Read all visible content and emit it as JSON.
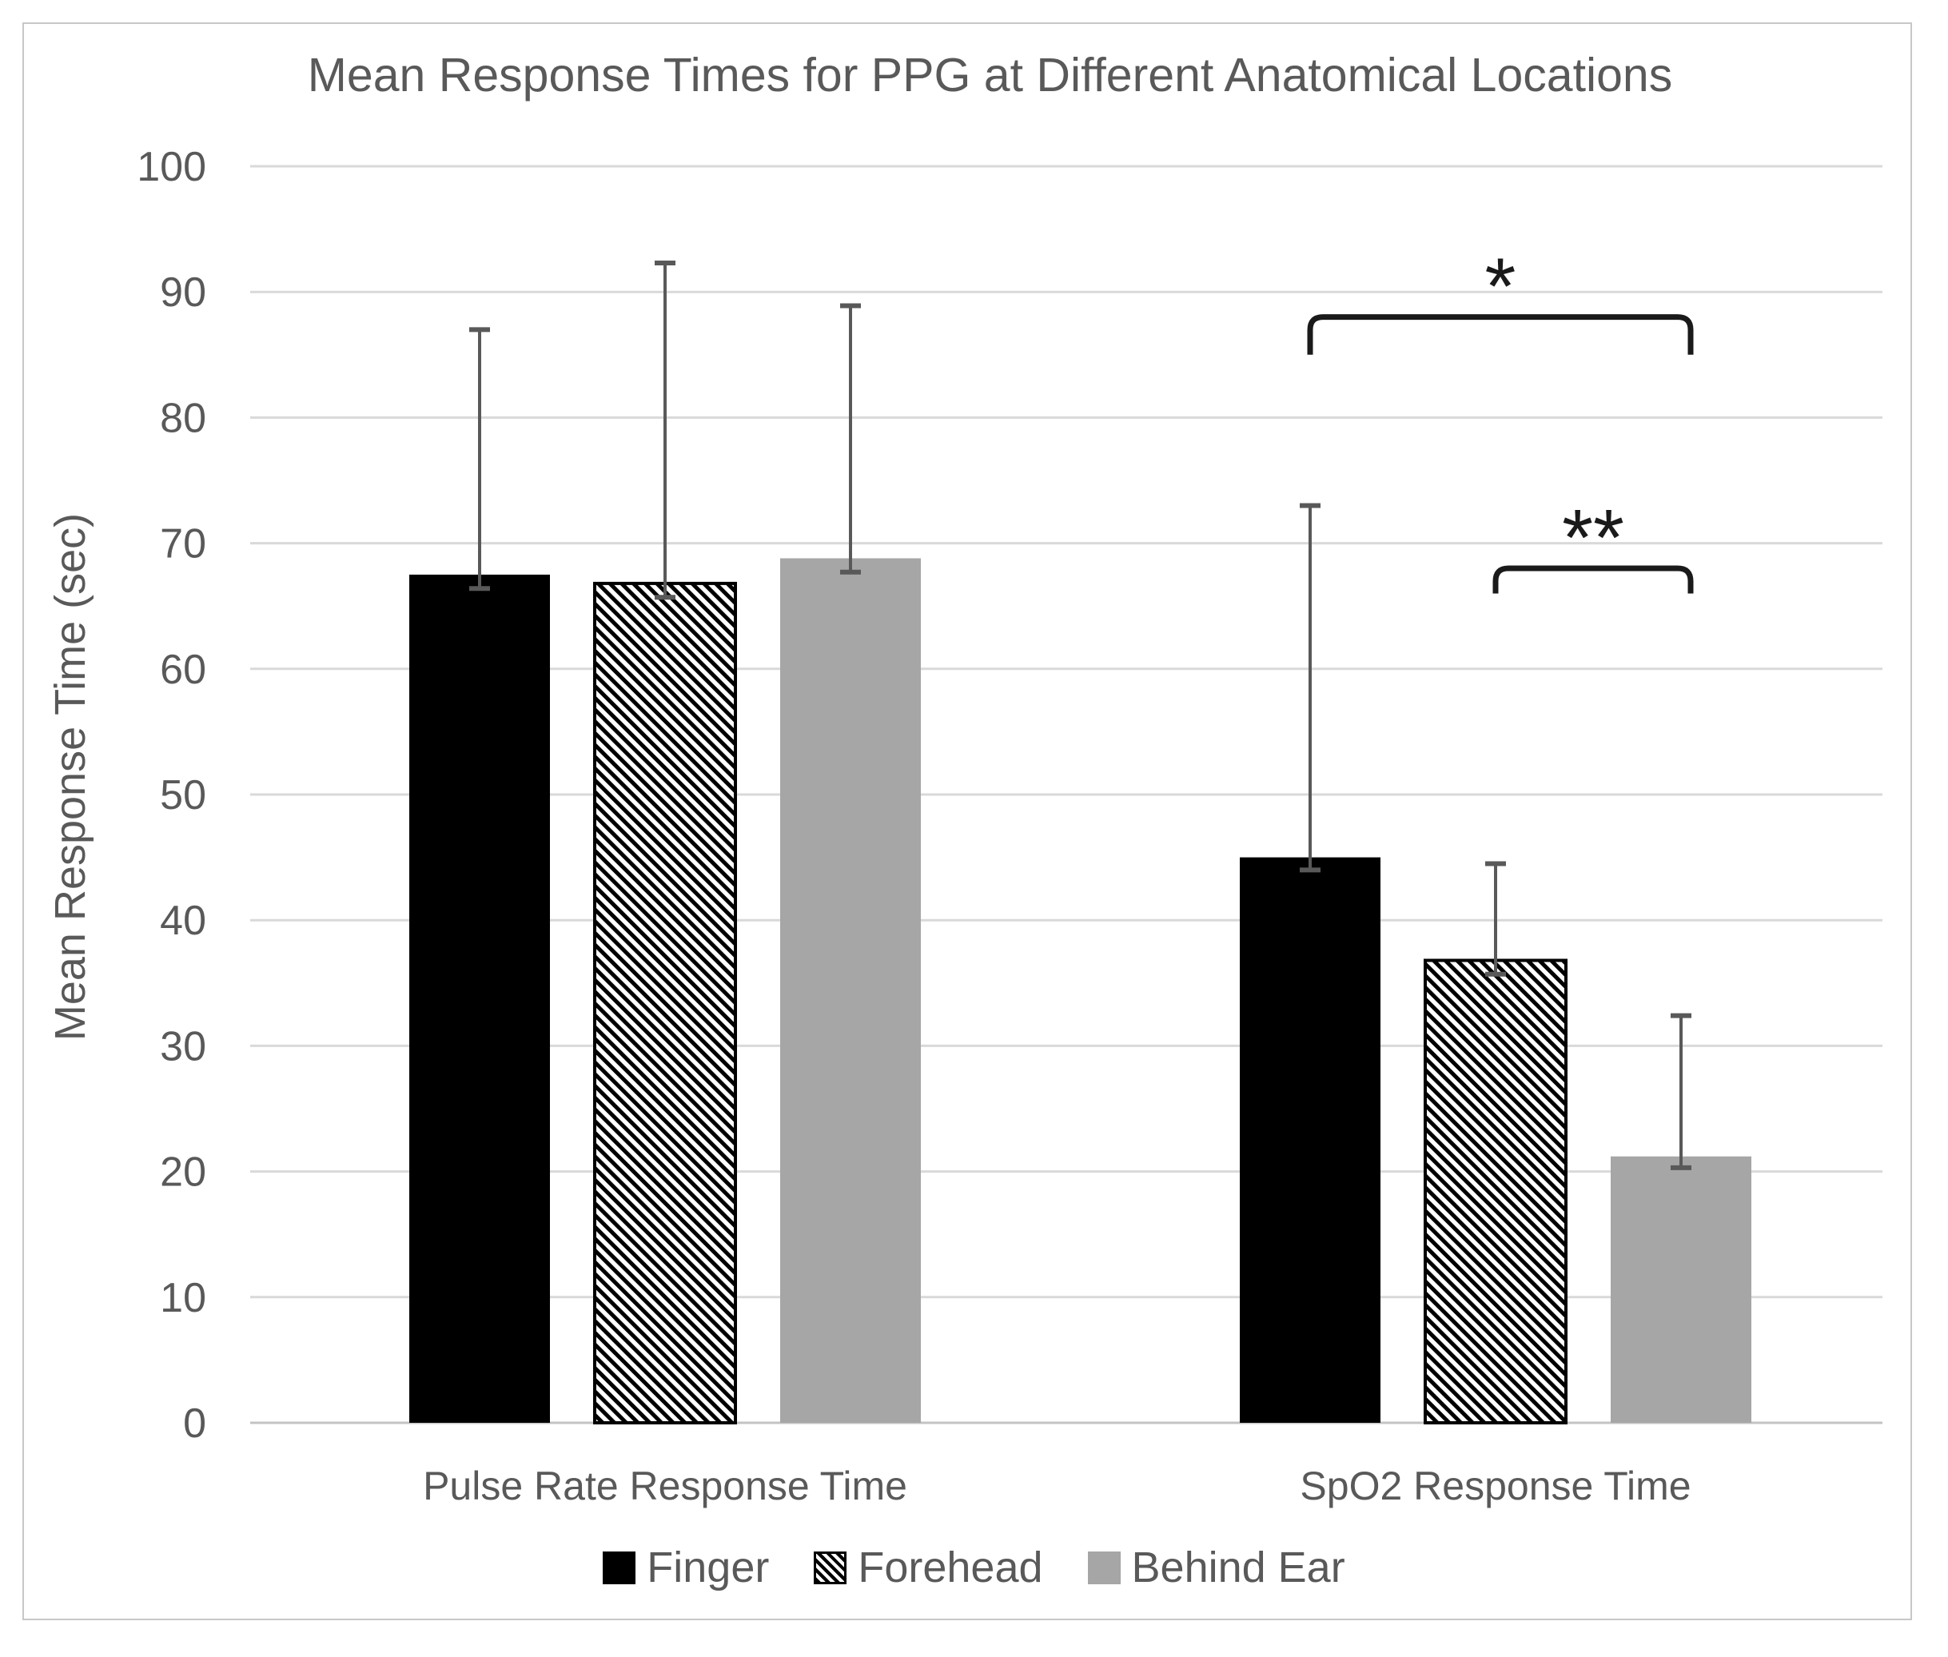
{
  "chart_data": {
    "type": "bar",
    "title": "Mean Response Times for PPG at Different Anatomical Locations",
    "ylabel": "Mean Response Time (sec)",
    "xlabel": "",
    "ylim": [
      0,
      100
    ],
    "y_ticks": [
      0,
      10,
      20,
      30,
      40,
      50,
      60,
      70,
      80,
      90,
      100
    ],
    "grid": true,
    "legend_position": "bottom",
    "categories": [
      "Pulse Rate Response Time",
      "SpO2 Response Time"
    ],
    "series": [
      {
        "name": "Finger",
        "style": "solid-black",
        "values": [
          67.5,
          45.0
        ],
        "error_low": [
          66.4,
          44.0
        ],
        "error_high": [
          87.0,
          73.0
        ]
      },
      {
        "name": "Forehead",
        "style": "hatched",
        "values": [
          66.8,
          36.8
        ],
        "error_low": [
          65.7,
          35.7
        ],
        "error_high": [
          92.3,
          44.5
        ]
      },
      {
        "name": "Behind Ear",
        "style": "solid-gray",
        "values": [
          68.8,
          21.2
        ],
        "error_low": [
          67.7,
          20.3
        ],
        "error_high": [
          88.9,
          32.4
        ]
      }
    ],
    "significance_brackets": [
      {
        "label": "*",
        "category_index": 1,
        "from_series": 0,
        "to_series": 2,
        "bar_y": 88.0,
        "leg_bottom_y": 85.0
      },
      {
        "label": "**",
        "category_index": 1,
        "from_series": 1,
        "to_series": 2,
        "bar_y": 68.0,
        "leg_bottom_y": 66.0
      }
    ]
  },
  "colors": {
    "bar_black": "#000000",
    "bar_gray": "#a6a6a6",
    "hatch_foreground": "#000000",
    "hatch_background": "#ffffff",
    "error_bar": "#595959",
    "gridline": "#d9d9d9",
    "axis_line": "#c3c3c3",
    "text": "#595959",
    "bracket": "#1a1a1a",
    "frame_border": "#c7c7c7"
  }
}
